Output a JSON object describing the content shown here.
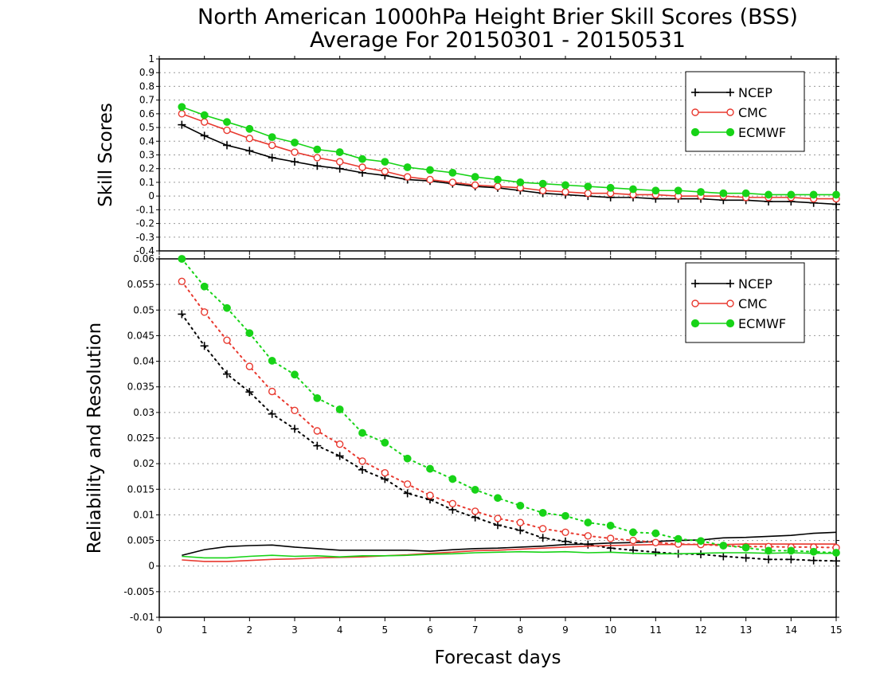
{
  "title_line1": "North American 1000hPa Height Brier Skill Scores (BSS)",
  "title_line2": "Average For 20150301 - 20150531",
  "xlabel": "Forecast days",
  "colors": {
    "NCEP": "#000000",
    "CMC": "#e8392f",
    "ECMWF": "#17d317",
    "grid": "#9a9a9a"
  },
  "chart_data": [
    {
      "type": "line",
      "panel": "top",
      "ylabel": "Skill Scores",
      "xlim": [
        0,
        15
      ],
      "ylim": [
        -0.4,
        1
      ],
      "x_ticks": [
        0,
        1,
        2,
        3,
        4,
        5,
        6,
        7,
        8,
        9,
        10,
        11,
        12,
        13,
        14,
        15
      ],
      "y_ticks": [
        "-0.4",
        "-0.3",
        "-0.2",
        "-0.1",
        "0",
        "0.1",
        "0.2",
        "0.3",
        "0.4",
        "0.5",
        "0.6",
        "0.7",
        "0.8",
        "0.9",
        "1"
      ],
      "grid": "horizontal dotted",
      "legend": {
        "position": "top-right",
        "entries": [
          "NCEP",
          "CMC",
          "ECMWF"
        ]
      },
      "x": [
        0.5,
        1,
        1.5,
        2,
        2.5,
        3,
        3.5,
        4,
        4.5,
        5,
        5.5,
        6,
        6.5,
        7,
        7.5,
        8,
        8.5,
        9,
        9.5,
        10,
        10.5,
        11,
        11.5,
        12,
        12.5,
        13,
        13.5,
        14,
        14.5,
        15
      ],
      "series": [
        {
          "name": "NCEP",
          "marker": "plus",
          "line": "solid",
          "values": [
            0.52,
            0.44,
            0.37,
            0.33,
            0.28,
            0.25,
            0.22,
            0.2,
            0.17,
            0.15,
            0.12,
            0.11,
            0.09,
            0.07,
            0.06,
            0.04,
            0.02,
            0.01,
            0.0,
            -0.01,
            -0.01,
            -0.02,
            -0.02,
            -0.02,
            -0.03,
            -0.03,
            -0.04,
            -0.04,
            -0.05,
            -0.06
          ]
        },
        {
          "name": "CMC",
          "marker": "open-circle",
          "line": "solid",
          "values": [
            0.6,
            0.54,
            0.48,
            0.42,
            0.37,
            0.32,
            0.28,
            0.25,
            0.21,
            0.18,
            0.14,
            0.12,
            0.1,
            0.08,
            0.07,
            0.06,
            0.04,
            0.03,
            0.02,
            0.02,
            0.01,
            0.01,
            0.0,
            0.0,
            0.0,
            -0.01,
            -0.01,
            -0.01,
            -0.02,
            -0.02
          ]
        },
        {
          "name": "ECMWF",
          "marker": "filled-circle",
          "line": "solid",
          "values": [
            0.65,
            0.59,
            0.54,
            0.49,
            0.43,
            0.39,
            0.34,
            0.32,
            0.27,
            0.25,
            0.21,
            0.19,
            0.17,
            0.14,
            0.12,
            0.1,
            0.09,
            0.08,
            0.07,
            0.06,
            0.05,
            0.04,
            0.04,
            0.03,
            0.02,
            0.02,
            0.01,
            0.01,
            0.01,
            0.01
          ]
        }
      ]
    },
    {
      "type": "line",
      "panel": "bottom",
      "ylabel": "Reliability and Resolution",
      "xlim": [
        0,
        15
      ],
      "ylim": [
        -0.01,
        0.06
      ],
      "x_ticks": [
        0,
        1,
        2,
        3,
        4,
        5,
        6,
        7,
        8,
        9,
        10,
        11,
        12,
        13,
        14,
        15
      ],
      "y_ticks": [
        "-0.01",
        "-0.005",
        "0",
        "0.005",
        "0.01",
        "0.015",
        "0.02",
        "0.025",
        "0.03",
        "0.035",
        "0.04",
        "0.045",
        "0.05",
        "0.055",
        "0.06"
      ],
      "grid": "horizontal dotted",
      "legend": {
        "position": "top-right",
        "entries": [
          "NCEP",
          "CMC",
          "ECMWF"
        ]
      },
      "x": [
        0.5,
        1,
        1.5,
        2,
        2.5,
        3,
        3.5,
        4,
        4.5,
        5,
        5.5,
        6,
        6.5,
        7,
        7.5,
        8,
        8.5,
        9,
        9.5,
        10,
        10.5,
        11,
        11.5,
        12,
        12.5,
        13,
        13.5,
        14,
        14.5,
        15
      ],
      "series": [
        {
          "name": "NCEP",
          "measure": "reliability",
          "marker": "none",
          "line": "solid",
          "values": [
            0.0021,
            0.0032,
            0.0038,
            0.004,
            0.0041,
            0.0037,
            0.0034,
            0.0031,
            0.0031,
            0.0031,
            0.0031,
            0.0029,
            0.0032,
            0.0034,
            0.0035,
            0.0037,
            0.0039,
            0.0042,
            0.0043,
            0.0045,
            0.0046,
            0.0048,
            0.005,
            0.0051,
            0.0055,
            0.0056,
            0.0058,
            0.006,
            0.0064,
            0.0066
          ]
        },
        {
          "name": "NCEP",
          "measure": "resolution",
          "marker": "plus",
          "line": "dotted",
          "values": [
            0.0492,
            0.043,
            0.0375,
            0.034,
            0.0297,
            0.0268,
            0.0235,
            0.0215,
            0.0188,
            0.017,
            0.0142,
            0.013,
            0.011,
            0.0095,
            0.008,
            0.007,
            0.0055,
            0.0048,
            0.0042,
            0.0035,
            0.0031,
            0.0027,
            0.0024,
            0.0023,
            0.0019,
            0.0016,
            0.0013,
            0.0013,
            0.0011,
            0.001
          ]
        },
        {
          "name": "CMC",
          "measure": "reliability",
          "marker": "none",
          "line": "solid",
          "values": [
            0.0012,
            0.0009,
            0.0009,
            0.0011,
            0.0013,
            0.0014,
            0.0016,
            0.0017,
            0.0018,
            0.002,
            0.0022,
            0.0025,
            0.0027,
            0.003,
            0.0031,
            0.0033,
            0.0035,
            0.0037,
            0.0039,
            0.004,
            0.0041,
            0.0042,
            0.0042,
            0.0042,
            0.0042,
            0.0043,
            0.0043,
            0.0043,
            0.0043,
            0.0043
          ]
        },
        {
          "name": "CMC",
          "measure": "resolution",
          "marker": "open-circle",
          "line": "dotted",
          "values": [
            0.0556,
            0.0496,
            0.0441,
            0.039,
            0.0341,
            0.0304,
            0.0264,
            0.0238,
            0.0205,
            0.0182,
            0.016,
            0.0138,
            0.0122,
            0.0107,
            0.0093,
            0.0085,
            0.0073,
            0.0066,
            0.0059,
            0.0054,
            0.005,
            0.0046,
            0.0043,
            0.0042,
            0.004,
            0.0038,
            0.0038,
            0.0037,
            0.0037,
            0.0036
          ]
        },
        {
          "name": "ECMWF",
          "measure": "reliability",
          "marker": "none",
          "line": "solid",
          "values": [
            0.0019,
            0.0016,
            0.0016,
            0.0019,
            0.0021,
            0.0019,
            0.002,
            0.0018,
            0.002,
            0.002,
            0.0021,
            0.0023,
            0.0024,
            0.0026,
            0.0027,
            0.0028,
            0.0027,
            0.0028,
            0.0026,
            0.0027,
            0.0025,
            0.0024,
            0.0024,
            0.0025,
            0.0026,
            0.0026,
            0.0025,
            0.0026,
            0.0025,
            0.0025
          ]
        },
        {
          "name": "ECMWF",
          "measure": "resolution",
          "marker": "filled-circle",
          "line": "dotted",
          "values": [
            0.06,
            0.0546,
            0.0504,
            0.0455,
            0.0401,
            0.0374,
            0.0328,
            0.0306,
            0.026,
            0.0241,
            0.021,
            0.019,
            0.017,
            0.0149,
            0.0133,
            0.0118,
            0.0104,
            0.0098,
            0.0085,
            0.0079,
            0.0066,
            0.0064,
            0.0053,
            0.0049,
            0.004,
            0.0036,
            0.003,
            0.003,
            0.0028,
            0.0026
          ]
        }
      ]
    }
  ]
}
